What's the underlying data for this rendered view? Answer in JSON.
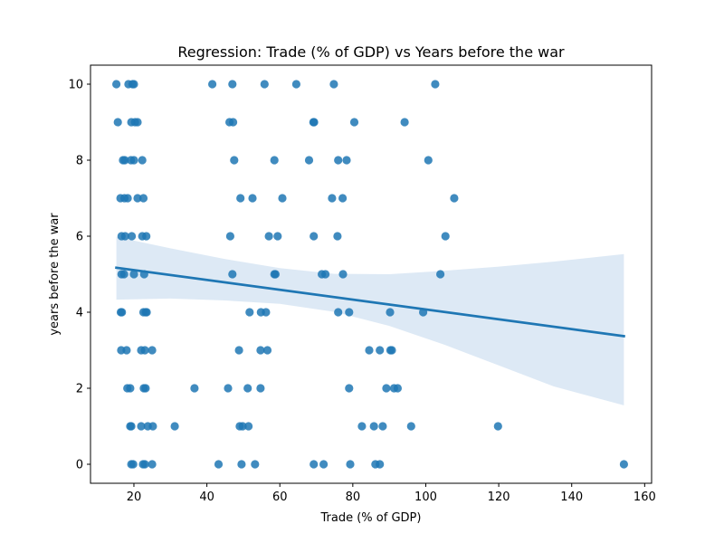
{
  "chart_data": {
    "type": "scatter",
    "title": "Regression: Trade (% of GDP) vs Years before the war",
    "xlabel": "Trade (% of GDP)",
    "ylabel": "years before the war",
    "xlim": [
      8.1,
      161.9
    ],
    "ylim": [
      -0.5,
      10.5
    ],
    "xticks": [
      20,
      40,
      60,
      80,
      100,
      120,
      140,
      160
    ],
    "yticks": [
      0,
      2,
      4,
      6,
      8,
      10
    ],
    "grid": false,
    "colors": {
      "points": "#1f77b4",
      "line": "#1f77b4",
      "band": "#c6dbef"
    },
    "points": [
      [
        15.2,
        10
      ],
      [
        18.5,
        10
      ],
      [
        19.6,
        10
      ],
      [
        20.0,
        10
      ],
      [
        41.5,
        10
      ],
      [
        47.0,
        10
      ],
      [
        55.8,
        10
      ],
      [
        64.5,
        10
      ],
      [
        74.8,
        10
      ],
      [
        102.6,
        10
      ],
      [
        15.6,
        9
      ],
      [
        19.3,
        9
      ],
      [
        20.3,
        9
      ],
      [
        21.0,
        9
      ],
      [
        46.2,
        9
      ],
      [
        47.2,
        9
      ],
      [
        69.2,
        9
      ],
      [
        69.4,
        9
      ],
      [
        80.4,
        9
      ],
      [
        94.2,
        9
      ],
      [
        17.0,
        8
      ],
      [
        17.5,
        8
      ],
      [
        19.2,
        8
      ],
      [
        20.0,
        8
      ],
      [
        22.3,
        8
      ],
      [
        47.5,
        8
      ],
      [
        58.5,
        8
      ],
      [
        68.0,
        8
      ],
      [
        76.0,
        8
      ],
      [
        78.3,
        8
      ],
      [
        100.7,
        8
      ],
      [
        16.3,
        7
      ],
      [
        17.4,
        7
      ],
      [
        18.3,
        7
      ],
      [
        21.0,
        7
      ],
      [
        22.6,
        7
      ],
      [
        49.2,
        7
      ],
      [
        52.5,
        7
      ],
      [
        60.7,
        7
      ],
      [
        74.3,
        7
      ],
      [
        77.2,
        7
      ],
      [
        107.8,
        7
      ],
      [
        16.6,
        6
      ],
      [
        17.6,
        6
      ],
      [
        19.4,
        6
      ],
      [
        22.3,
        6
      ],
      [
        23.4,
        6
      ],
      [
        46.4,
        6
      ],
      [
        57.0,
        6
      ],
      [
        59.4,
        6
      ],
      [
        69.3,
        6
      ],
      [
        75.8,
        6
      ],
      [
        105.4,
        6
      ],
      [
        16.6,
        5
      ],
      [
        17.3,
        5
      ],
      [
        20.0,
        5
      ],
      [
        22.8,
        5
      ],
      [
        47.0,
        5
      ],
      [
        58.5,
        5
      ],
      [
        58.8,
        5
      ],
      [
        71.5,
        5
      ],
      [
        72.5,
        5
      ],
      [
        77.3,
        5
      ],
      [
        104.0,
        5
      ],
      [
        16.4,
        4
      ],
      [
        16.7,
        4
      ],
      [
        22.6,
        4
      ],
      [
        23.2,
        4
      ],
      [
        23.5,
        4
      ],
      [
        51.7,
        4
      ],
      [
        54.8,
        4
      ],
      [
        56.2,
        4
      ],
      [
        76.0,
        4
      ],
      [
        79.0,
        4
      ],
      [
        90.2,
        4
      ],
      [
        99.3,
        4
      ],
      [
        16.5,
        3
      ],
      [
        18.0,
        3
      ],
      [
        22.0,
        3
      ],
      [
        23.0,
        3
      ],
      [
        25.0,
        3
      ],
      [
        48.8,
        3
      ],
      [
        54.7,
        3
      ],
      [
        56.6,
        3
      ],
      [
        84.5,
        3
      ],
      [
        87.4,
        3
      ],
      [
        90.3,
        3
      ],
      [
        90.7,
        3
      ],
      [
        18.2,
        2
      ],
      [
        19.0,
        2
      ],
      [
        22.7,
        2
      ],
      [
        23.2,
        2
      ],
      [
        36.6,
        2
      ],
      [
        45.8,
        2
      ],
      [
        51.2,
        2
      ],
      [
        54.7,
        2
      ],
      [
        79.0,
        2
      ],
      [
        89.2,
        2
      ],
      [
        91.3,
        2
      ],
      [
        92.3,
        2
      ],
      [
        19.0,
        1
      ],
      [
        19.3,
        1
      ],
      [
        22.0,
        1
      ],
      [
        23.8,
        1
      ],
      [
        25.2,
        1
      ],
      [
        31.2,
        1
      ],
      [
        49.0,
        1
      ],
      [
        49.8,
        1
      ],
      [
        51.4,
        1
      ],
      [
        82.5,
        1
      ],
      [
        85.8,
        1
      ],
      [
        88.2,
        1
      ],
      [
        96.0,
        1
      ],
      [
        119.8,
        1
      ],
      [
        19.3,
        0
      ],
      [
        19.8,
        0
      ],
      [
        22.5,
        0
      ],
      [
        23.0,
        0
      ],
      [
        25.0,
        0
      ],
      [
        43.2,
        0
      ],
      [
        49.5,
        0
      ],
      [
        53.2,
        0
      ],
      [
        69.3,
        0
      ],
      [
        72.0,
        0
      ],
      [
        79.3,
        0
      ],
      [
        86.2,
        0
      ],
      [
        87.4,
        0
      ],
      [
        154.3,
        0
      ]
    ],
    "regression": {
      "x": [
        15.2,
        154.3
      ],
      "y": [
        5.17,
        3.37
      ]
    },
    "confidence_band": {
      "x": [
        15.2,
        30,
        45,
        60,
        75,
        90,
        105,
        120,
        135,
        154.3
      ],
      "lower": [
        4.33,
        4.36,
        4.31,
        4.22,
        4.01,
        3.64,
        3.15,
        2.6,
        2.05,
        1.55
      ],
      "upper": [
        5.98,
        5.68,
        5.4,
        5.16,
        5.01,
        5.0,
        5.09,
        5.2,
        5.33,
        5.53
      ]
    }
  }
}
